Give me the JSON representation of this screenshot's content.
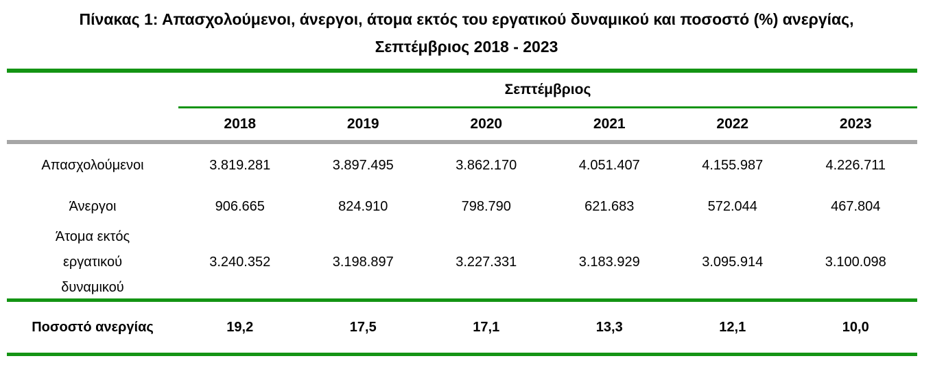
{
  "colors": {
    "rule_green": "#149414",
    "rule_gray": "#a6a6a6",
    "text": "#000000",
    "background": "#ffffff"
  },
  "title": {
    "line1": "Πίνακας 1: Απασχολούμενοι, άνεργοι, άτομα εκτός του εργατικού δυναμικού και ποσοστό (%) ανεργίας,",
    "line2": "Σεπτέμβριος 2018 - 2023"
  },
  "table": {
    "group_header": "Σεπτέμβριος",
    "years": [
      "2018",
      "2019",
      "2020",
      "2021",
      "2022",
      "2023"
    ],
    "rows": [
      {
        "label": "Απασχολούμενοι",
        "values": [
          "3.819.281",
          "3.897.495",
          "3.862.170",
          "4.051.407",
          "4.155.987",
          "4.226.711"
        ]
      },
      {
        "label": "Άνεργοι",
        "values": [
          "906.665",
          "824.910",
          "798.790",
          "621.683",
          "572.044",
          "467.804"
        ]
      },
      {
        "label": "Άτομα εκτός εργατικού δυναμικού",
        "values": [
          "3.240.352",
          "3.198.897",
          "3.227.331",
          "3.183.929",
          "3.095.914",
          "3.100.098"
        ]
      },
      {
        "label": "Ποσοστό ανεργίας",
        "values": [
          "19,2",
          "17,5",
          "17,1",
          "13,3",
          "12,1",
          "10,0"
        ]
      }
    ]
  },
  "chart_data": {
    "type": "table",
    "title": "Πίνακας 1: Απασχολούμενοι, άνεργοι, άτομα εκτός του εργατικού δυναμικού και ποσοστό (%) ανεργίας, Σεπτέμβριος 2018 - 2023",
    "column_group": "Σεπτέμβριος",
    "categories": [
      "2018",
      "2019",
      "2020",
      "2021",
      "2022",
      "2023"
    ],
    "series": [
      {
        "name": "Απασχολούμενοι",
        "values": [
          3819281,
          3897495,
          3862170,
          4051407,
          4155987,
          4226711
        ]
      },
      {
        "name": "Άνεργοι",
        "values": [
          906665,
          824910,
          798790,
          621683,
          572044,
          467804
        ]
      },
      {
        "name": "Άτομα εκτός εργατικού δυναμικού",
        "values": [
          3240352,
          3198897,
          3227331,
          3183929,
          3095914,
          3100098
        ]
      },
      {
        "name": "Ποσοστό ανεργίας",
        "values": [
          19.2,
          17.5,
          17.1,
          13.3,
          12.1,
          10.0
        ]
      }
    ],
    "layout": {
      "number_format": "el-GR (dot thousands, comma decimals)",
      "grid": "horizontal rules only"
    }
  }
}
